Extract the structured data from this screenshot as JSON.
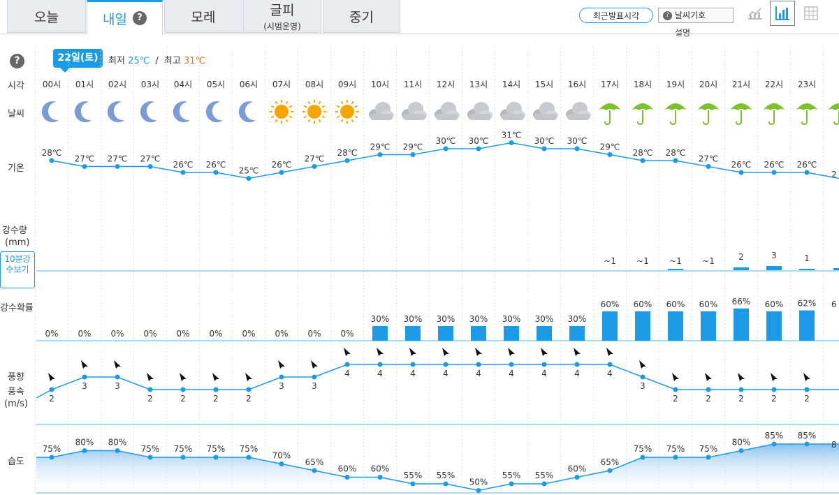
{
  "tabs": [
    {
      "label": "오늘",
      "sub": ""
    },
    {
      "label": "내일",
      "sub": ""
    },
    {
      "label": "모레",
      "sub": ""
    },
    {
      "label": "글피",
      "sub": "(시범운영)"
    },
    {
      "label": "중기",
      "sub": ""
    }
  ],
  "active_tab_index": 1,
  "help_glyph": "?",
  "toolbar": {
    "recent_button": "최근발표시각",
    "symbol_button": "날씨기호",
    "symbol_desc": "설명"
  },
  "date_badge": "22일(토)",
  "minmax": {
    "min_label": "최저",
    "min_value": "25℃",
    "separator": "/",
    "max_label": "최고",
    "max_value": "31℃"
  },
  "row_labels": {
    "time": "시각",
    "weather": "날씨",
    "temp": "기온",
    "rain_amount": "강수량",
    "rain_unit": "(mm)",
    "rain10_button": "10분강수보기",
    "rain_prob": "강수확률",
    "wind_dir": "풍향",
    "wind_speed": "풍속",
    "wind_unit": "(m/s)",
    "humidity": "습도"
  },
  "colors": {
    "accent": "#1b9ae6",
    "line": "#1b9ae6",
    "sun": "#f6a400",
    "umbrella": "#7cc22b",
    "cloud": "#9aa0a6",
    "moon": "#7a9bd8"
  },
  "chart_data": {
    "type": "table",
    "hours": [
      "00시",
      "01시",
      "02시",
      "03시",
      "04시",
      "05시",
      "06시",
      "07시",
      "08시",
      "09시",
      "10시",
      "11시",
      "12시",
      "13시",
      "14시",
      "15시",
      "16시",
      "17시",
      "18시",
      "19시",
      "20시",
      "21시",
      "22시",
      "23시"
    ],
    "weather_icons": [
      "moon-icon",
      "moon-icon",
      "moon-icon",
      "moon-icon",
      "moon-icon",
      "moon-icon",
      "moon-icon",
      "sun-icon",
      "sun-icon",
      "sun-icon",
      "cloudy-icon",
      "cloudy-icon",
      "cloudy-icon",
      "cloudy-icon",
      "cloudy-icon",
      "cloudy-icon",
      "cloudy-icon",
      "umbrella-icon",
      "umbrella-icon",
      "umbrella-icon",
      "umbrella-icon",
      "umbrella-icon",
      "umbrella-icon",
      "umbrella-icon"
    ],
    "temperature": [
      28,
      27,
      27,
      27,
      26,
      26,
      25,
      26,
      27,
      28,
      29,
      29,
      30,
      30,
      31,
      30,
      30,
      29,
      28,
      28,
      27,
      26,
      26,
      26
    ],
    "temperature_unit": "℃",
    "rain_amount_labels": [
      "",
      "",
      "",
      "",
      "",
      "",
      "",
      "",
      "",
      "",
      "",
      "",
      "",
      "",
      "",
      "",
      "",
      "~1",
      "~1",
      "~1",
      "~1",
      "2",
      "3",
      "1"
    ],
    "rain_amount_values": [
      0,
      0,
      0,
      0,
      0,
      0,
      0,
      0,
      0,
      0,
      0,
      0,
      0,
      0,
      0,
      0,
      0,
      0,
      0,
      0.3,
      0,
      2,
      3,
      1
    ],
    "rain_probability": [
      0,
      0,
      0,
      0,
      0,
      0,
      0,
      0,
      0,
      0,
      30,
      30,
      30,
      30,
      30,
      30,
      30,
      60,
      60,
      60,
      60,
      66,
      60,
      62
    ],
    "wind_speed": [
      2,
      3,
      3,
      2,
      2,
      2,
      2,
      3,
      3,
      4,
      4,
      4,
      4,
      4,
      4,
      4,
      4,
      4,
      3,
      2,
      2,
      2,
      2,
      2
    ],
    "humidity": [
      75,
      80,
      80,
      75,
      75,
      75,
      75,
      70,
      65,
      60,
      60,
      55,
      55,
      50,
      55,
      55,
      60,
      65,
      75,
      75,
      75,
      80,
      85,
      85
    ],
    "percent_unit": "%",
    "next_hour_partial": {
      "temperature_label": "2",
      "rain_probability_label": "6",
      "humidity_label": "8"
    }
  }
}
